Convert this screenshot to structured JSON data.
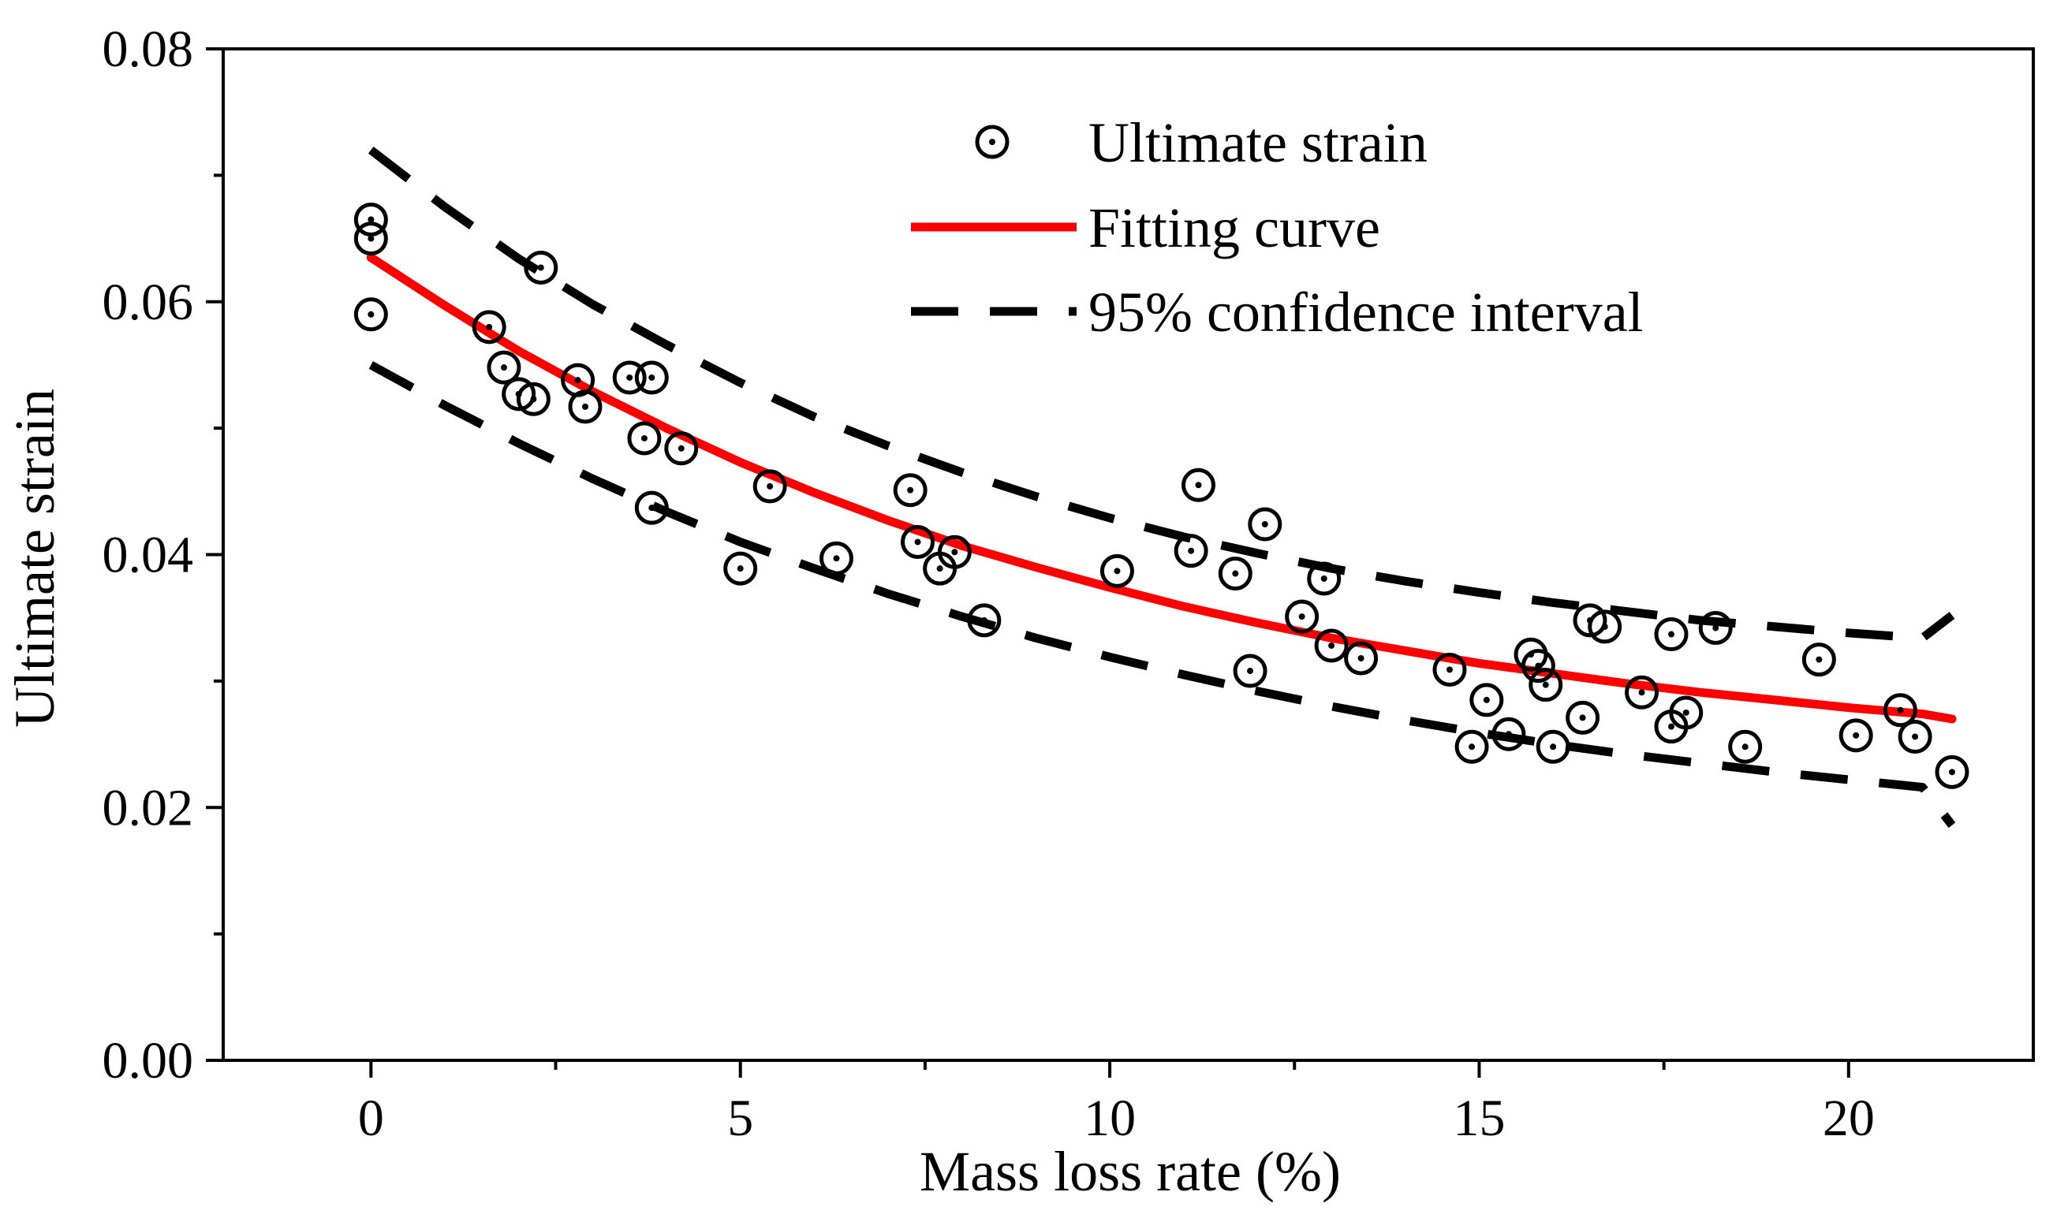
{
  "chart_data": {
    "type": "scatter",
    "title": "",
    "xlabel": "Mass loss rate (%)",
    "ylabel": "Ultimate strain",
    "xlim": [
      -2,
      22.5
    ],
    "ylim": [
      0,
      0.08
    ],
    "x_ticks": [
      0,
      5,
      10,
      15,
      20
    ],
    "x_tick_labels": [
      "0",
      "5",
      "10",
      "15",
      "20"
    ],
    "y_ticks": [
      0,
      0.02,
      0.04,
      0.06,
      0.08
    ],
    "y_tick_labels": [
      "0.00",
      "0.02",
      "0.04",
      "0.06",
      "0.08"
    ],
    "grid": false,
    "legend_position": "top-right",
    "colors": {
      "fit": "#ff0000",
      "points": "#000000",
      "ci": "#000000",
      "axis": "#000000"
    },
    "legend": [
      {
        "name": "Ultimate strain",
        "marker": "circle-dot"
      },
      {
        "name": "Fitting curve",
        "marker": "solid-line"
      },
      {
        "name": "95% confidence interval",
        "marker": "dashed-line"
      }
    ],
    "series": [
      {
        "name": "Ultimate strain",
        "kind": "scatter",
        "points": [
          [
            0.0,
            0.0665
          ],
          [
            0.0,
            0.065
          ],
          [
            0.0,
            0.059
          ],
          [
            1.6,
            0.058
          ],
          [
            1.8,
            0.0548
          ],
          [
            2.0,
            0.0527
          ],
          [
            2.2,
            0.0523
          ],
          [
            2.3,
            0.0627
          ],
          [
            2.8,
            0.0538
          ],
          [
            2.9,
            0.0517
          ],
          [
            3.5,
            0.054
          ],
          [
            3.8,
            0.054
          ],
          [
            3.7,
            0.0492
          ],
          [
            3.8,
            0.0437
          ],
          [
            4.2,
            0.0484
          ],
          [
            5.0,
            0.0389
          ],
          [
            5.4,
            0.0454
          ],
          [
            6.3,
            0.0397
          ],
          [
            7.3,
            0.0451
          ],
          [
            7.4,
            0.041
          ],
          [
            7.7,
            0.0389
          ],
          [
            7.9,
            0.0402
          ],
          [
            8.3,
            0.0348
          ],
          [
            10.1,
            0.0387
          ],
          [
            11.1,
            0.0403
          ],
          [
            11.2,
            0.0455
          ],
          [
            11.7,
            0.0385
          ],
          [
            11.9,
            0.0308
          ],
          [
            12.1,
            0.0424
          ],
          [
            12.6,
            0.0351
          ],
          [
            12.9,
            0.0381
          ],
          [
            13.0,
            0.0328
          ],
          [
            13.4,
            0.0318
          ],
          [
            14.6,
            0.0309
          ],
          [
            14.9,
            0.0248
          ],
          [
            15.1,
            0.0285
          ],
          [
            15.4,
            0.0258
          ],
          [
            15.7,
            0.0321
          ],
          [
            15.8,
            0.0312
          ],
          [
            15.9,
            0.0297
          ],
          [
            16.0,
            0.0248
          ],
          [
            16.4,
            0.0271
          ],
          [
            16.5,
            0.0348
          ],
          [
            16.7,
            0.0343
          ],
          [
            17.2,
            0.0291
          ],
          [
            17.6,
            0.0264
          ],
          [
            17.6,
            0.0337
          ],
          [
            17.8,
            0.0275
          ],
          [
            18.2,
            0.0342
          ],
          [
            18.6,
            0.0248
          ],
          [
            19.6,
            0.0317
          ],
          [
            20.1,
            0.0257
          ],
          [
            20.7,
            0.0277
          ],
          [
            20.9,
            0.0256
          ],
          [
            21.4,
            0.0228
          ]
        ]
      },
      {
        "name": "Fitting curve",
        "kind": "line",
        "points": [
          [
            0,
            0.0635
          ],
          [
            1,
            0.0597
          ],
          [
            2,
            0.0561
          ],
          [
            3,
            0.0529
          ],
          [
            4,
            0.05
          ],
          [
            5,
            0.0473
          ],
          [
            6,
            0.0449
          ],
          [
            7,
            0.0427
          ],
          [
            8,
            0.0407
          ],
          [
            9,
            0.039
          ],
          [
            10,
            0.0374
          ],
          [
            11,
            0.0359
          ],
          [
            12,
            0.0346
          ],
          [
            13,
            0.0334
          ],
          [
            14,
            0.0324
          ],
          [
            15,
            0.0314
          ],
          [
            16,
            0.0306
          ],
          [
            17,
            0.0298
          ],
          [
            18,
            0.0291
          ],
          [
            19,
            0.0285
          ],
          [
            20,
            0.0279
          ],
          [
            21,
            0.0274
          ],
          [
            21.4,
            0.027
          ]
        ]
      },
      {
        "name": "95% confidence interval (upper)",
        "kind": "dashed",
        "points": [
          [
            0,
            0.072
          ],
          [
            1,
            0.0675
          ],
          [
            2,
            0.0634
          ],
          [
            3,
            0.0598
          ],
          [
            4,
            0.0566
          ],
          [
            5,
            0.0536
          ],
          [
            6,
            0.0509
          ],
          [
            7,
            0.0486
          ],
          [
            8,
            0.0465
          ],
          [
            9,
            0.0446
          ],
          [
            10,
            0.0429
          ],
          [
            11,
            0.0414
          ],
          [
            12,
            0.0401
          ],
          [
            13,
            0.0389
          ],
          [
            14,
            0.0379
          ],
          [
            15,
            0.037
          ],
          [
            16,
            0.0362
          ],
          [
            17,
            0.0355
          ],
          [
            18,
            0.0348
          ],
          [
            19,
            0.0343
          ],
          [
            20,
            0.0338
          ],
          [
            21,
            0.0334
          ],
          [
            21.4,
            0.0352
          ]
        ]
      },
      {
        "name": "95% confidence interval (lower)",
        "kind": "dashed",
        "points": [
          [
            0,
            0.055
          ],
          [
            1,
            0.0518
          ],
          [
            2,
            0.0488
          ],
          [
            3,
            0.046
          ],
          [
            4,
            0.0434
          ],
          [
            5,
            0.041
          ],
          [
            6,
            0.0389
          ],
          [
            7,
            0.0369
          ],
          [
            8,
            0.0351
          ],
          [
            9,
            0.0334
          ],
          [
            10,
            0.0319
          ],
          [
            11,
            0.0305
          ],
          [
            12,
            0.0292
          ],
          [
            13,
            0.028
          ],
          [
            14,
            0.0269
          ],
          [
            15,
            0.0259
          ],
          [
            16,
            0.025
          ],
          [
            17,
            0.0242
          ],
          [
            18,
            0.0235
          ],
          [
            19,
            0.0228
          ],
          [
            20,
            0.0222
          ],
          [
            21,
            0.0216
          ],
          [
            21.4,
            0.0186
          ]
        ]
      }
    ]
  }
}
